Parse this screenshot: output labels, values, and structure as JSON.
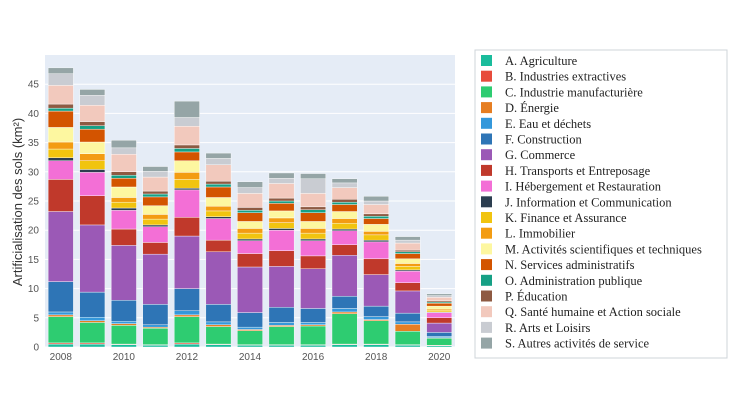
{
  "chart_data": {
    "type": "bar",
    "stacked": true,
    "title": "",
    "xlabel": "",
    "ylabel": "Artificialisation des sols (km²)",
    "ylim": [
      0,
      50
    ],
    "yticks": [
      0,
      5,
      10,
      15,
      20,
      25,
      30,
      35,
      40,
      45
    ],
    "xticks": [
      "2008",
      "2010",
      "2012",
      "2014",
      "2016",
      "2018",
      "2020"
    ],
    "grid": true,
    "legend_position": "right",
    "categories": [
      "2008",
      "2009",
      "2010",
      "2011",
      "2012",
      "2013",
      "2014",
      "2015",
      "2016",
      "2017",
      "2018",
      "2019",
      "2020"
    ],
    "series": [
      {
        "name": "A. Agriculture",
        "color": "#1abc9c",
        "values": [
          0.5,
          0.5,
          0.4,
          0.3,
          0.5,
          0.4,
          0.3,
          0.3,
          0.3,
          0.4,
          0.4,
          0.3,
          0.2
        ]
      },
      {
        "name": "B. Industries extractives",
        "color": "#e74c3c",
        "values": [
          0.2,
          0.2,
          0.1,
          0.1,
          0.2,
          0.1,
          0.1,
          0.1,
          0.1,
          0.1,
          0.1,
          0.1,
          0.1
        ]
      },
      {
        "name": "C. Industrie manufacturière",
        "color": "#2ecc71",
        "values": [
          4.5,
          3.5,
          3.2,
          2.8,
          4.5,
          3.0,
          2.4,
          3.1,
          3.2,
          5.2,
          4.0,
          2.3,
          1.2
        ]
      },
      {
        "name": "D. Énergie",
        "color": "#e67e22",
        "values": [
          0.3,
          0.3,
          0.3,
          0.2,
          0.3,
          0.3,
          0.2,
          0.2,
          0.2,
          0.3,
          0.2,
          1.2,
          0.1
        ]
      },
      {
        "name": "E. Eau et déchets",
        "color": "#3498db",
        "values": [
          0.5,
          0.6,
          0.4,
          0.4,
          0.7,
          0.5,
          0.4,
          0.5,
          0.4,
          0.6,
          0.5,
          0.4,
          0.2
        ]
      },
      {
        "name": "F. Construction",
        "color": "#2e75b6",
        "values": [
          5.2,
          4.3,
          3.6,
          3.5,
          3.8,
          3.0,
          2.5,
          2.6,
          2.4,
          2.1,
          1.8,
          1.5,
          0.7
        ]
      },
      {
        "name": "G. Commerce",
        "color": "#9b59b6",
        "values": [
          12.0,
          11.5,
          9.4,
          8.6,
          9.0,
          9.0,
          7.8,
          7.0,
          6.8,
          7.0,
          5.4,
          3.8,
          1.6
        ]
      },
      {
        "name": "H. Transports et Entreposage",
        "color": "#c0392b",
        "values": [
          5.5,
          5.0,
          2.8,
          2.0,
          3.2,
          2.0,
          2.3,
          2.7,
          2.2,
          1.8,
          2.7,
          1.4,
          0.9
        ]
      },
      {
        "name": "I. Hébergement et Restauration",
        "color": "#f36fd6",
        "values": [
          3.2,
          4.0,
          3.2,
          2.7,
          4.7,
          3.7,
          2.2,
          3.5,
          2.6,
          2.4,
          2.9,
          2.0,
          0.9
        ]
      },
      {
        "name": "J. Information et Communication",
        "color": "#2c3e50",
        "values": [
          0.5,
          0.5,
          0.4,
          0.3,
          0.3,
          0.3,
          0.3,
          0.3,
          0.3,
          0.3,
          0.3,
          0.2,
          0.1
        ]
      },
      {
        "name": "K. Finance et Assurance",
        "color": "#f1c40f",
        "values": [
          1.5,
          1.5,
          1.0,
          1.0,
          1.5,
          1.0,
          1.0,
          1.0,
          1.0,
          1.0,
          0.9,
          0.6,
          0.3
        ]
      },
      {
        "name": "L. Immobilier",
        "color": "#f39c12",
        "values": [
          1.2,
          1.2,
          0.8,
          0.8,
          1.2,
          0.8,
          0.8,
          0.8,
          0.8,
          0.8,
          0.6,
          0.5,
          0.2
        ]
      },
      {
        "name": "M. Activités scientifiques et techniques",
        "color": "#fdf7a0",
        "values": [
          2.5,
          2.0,
          1.8,
          1.5,
          2.0,
          1.5,
          1.2,
          1.2,
          1.2,
          1.2,
          1.2,
          0.8,
          0.5
        ]
      },
      {
        "name": "N. Services administratifs",
        "color": "#d35400",
        "values": [
          2.8,
          2.2,
          1.5,
          1.5,
          1.5,
          1.8,
          1.5,
          1.3,
          1.5,
          1.2,
          1.0,
          0.9,
          0.5
        ]
      },
      {
        "name": "O. Administration publique",
        "color": "#16a085",
        "values": [
          0.5,
          0.6,
          0.5,
          0.5,
          0.6,
          0.5,
          0.4,
          0.4,
          0.5,
          0.4,
          0.4,
          0.3,
          0.2
        ]
      },
      {
        "name": "P. Éducation",
        "color": "#8e5a42",
        "values": [
          0.7,
          0.7,
          0.6,
          0.5,
          0.6,
          0.5,
          0.5,
          0.5,
          0.5,
          0.5,
          0.4,
          0.3,
          0.2
        ]
      },
      {
        "name": "Q. Santé humaine et Action sociale",
        "color": "#f2c9bd",
        "values": [
          3.2,
          2.8,
          3.0,
          2.4,
          3.2,
          2.8,
          2.4,
          2.5,
          2.3,
          2.0,
          1.6,
          1.2,
          0.6
        ]
      },
      {
        "name": "R. Arts et Loisirs",
        "color": "#c9ccd2",
        "values": [
          2.0,
          1.7,
          1.1,
          1.0,
          1.5,
          1.1,
          1.0,
          0.9,
          2.5,
          0.8,
          0.6,
          0.5,
          0.3
        ]
      },
      {
        "name": "S. Autres activités de service",
        "color": "#95a5a6",
        "values": [
          1.0,
          1.0,
          1.3,
          0.8,
          2.8,
          0.9,
          1.0,
          0.9,
          0.9,
          0.7,
          0.8,
          0.6,
          0.3
        ]
      }
    ]
  }
}
